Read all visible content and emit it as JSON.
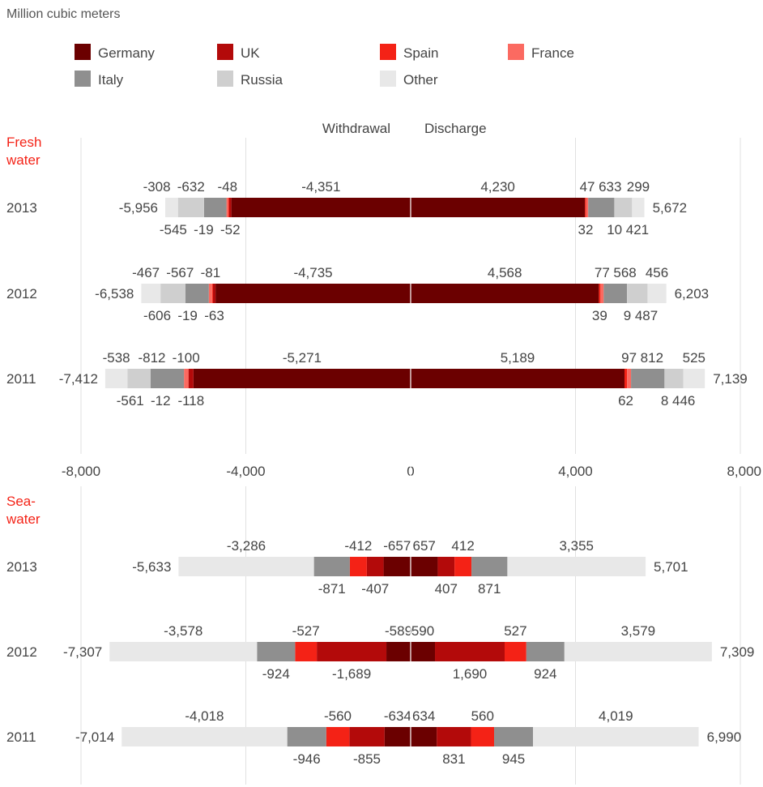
{
  "unit_label": "Million cubic meters",
  "legend": [
    {
      "name": "Germany",
      "color": "#6b0000"
    },
    {
      "name": "UK",
      "color": "#b30a0a"
    },
    {
      "name": "Spain",
      "color": "#f42216"
    },
    {
      "name": "France",
      "color": "#fb6a61"
    },
    {
      "name": "Italy",
      "color": "#8f8f8f"
    },
    {
      "name": "Russia",
      "color": "#cfcfcf"
    },
    {
      "name": "Other",
      "color": "#e8e8e8"
    }
  ],
  "chart_data": {
    "type": "bar",
    "orientation": "horizontal",
    "stacking": "diverging",
    "unit": "Million cubic meters",
    "direction_labels": {
      "left": "Withdrawal",
      "right": "Discharge"
    },
    "xlim": [
      -8000,
      8000
    ],
    "x_ticks": [
      -8000,
      -4000,
      0,
      4000,
      8000
    ],
    "x_tick_labels": [
      "-8,000",
      "-4,000",
      "0",
      "4,000",
      "8,000"
    ],
    "grid": true,
    "legend_position": "top",
    "series_order": [
      "Germany",
      "UK",
      "Spain",
      "France",
      "Italy",
      "Russia",
      "Other"
    ],
    "panels": [
      {
        "label": "Fresh water",
        "label_lines": [
          "Fresh",
          "water"
        ],
        "rows": [
          {
            "year": "2013",
            "withdrawal_total": -5956,
            "withdrawal_total_label": "-5,956",
            "discharge_total": 5672,
            "discharge_total_label": "5,672",
            "withdrawal": [
              {
                "series": "Germany",
                "value": -4351,
                "label": "-4,351",
                "pos": "above"
              },
              {
                "series": "UK",
                "value": -52,
                "label": "-52",
                "pos": "below"
              },
              {
                "series": "Spain",
                "value": -19,
                "label": "-19",
                "pos": "below"
              },
              {
                "series": "France",
                "value": -48,
                "label": "-48",
                "pos": "above"
              },
              {
                "series": "Italy",
                "value": -545,
                "label": "-545",
                "pos": "below"
              },
              {
                "series": "Russia",
                "value": -632,
                "label": "-632",
                "pos": "above"
              },
              {
                "series": "Other",
                "value": -308,
                "label": "-308",
                "pos": "above"
              }
            ],
            "discharge": [
              {
                "series": "Germany",
                "value": 4230,
                "label": "4,230",
                "pos": "above"
              },
              {
                "series": "Spain",
                "value": 32,
                "label": "32",
                "pos": "below"
              },
              {
                "series": "France",
                "value": 47,
                "label": "47",
                "pos": "above"
              },
              {
                "series": "Italy",
                "value": 633,
                "label": "633",
                "pos": "above"
              },
              {
                "series": "Russia",
                "value": 10,
                "label": "10",
                "pos": "below"
              },
              {
                "series": "Russia",
                "value": 421,
                "label": "421",
                "pos": "below"
              },
              {
                "series": "Other",
                "value": 299,
                "label": "299",
                "pos": "above"
              }
            ]
          },
          {
            "year": "2012",
            "withdrawal_total": -6538,
            "withdrawal_total_label": "-6,538",
            "discharge_total": 6203,
            "discharge_total_label": "6,203",
            "withdrawal": [
              {
                "series": "Germany",
                "value": -4735,
                "label": "-4,735",
                "pos": "above"
              },
              {
                "series": "UK",
                "value": -63,
                "label": "-63",
                "pos": "below"
              },
              {
                "series": "Spain",
                "value": -19,
                "label": "-19",
                "pos": "below"
              },
              {
                "series": "France",
                "value": -81,
                "label": "-81",
                "pos": "above"
              },
              {
                "series": "Italy",
                "value": -567,
                "label": "-567",
                "pos": "above"
              },
              {
                "series": "Russia",
                "value": -606,
                "label": "-606",
                "pos": "below"
              },
              {
                "series": "Other",
                "value": -467,
                "label": "-467",
                "pos": "above"
              }
            ],
            "discharge": [
              {
                "series": "Germany",
                "value": 4568,
                "label": "4,568",
                "pos": "above"
              },
              {
                "series": "Spain",
                "value": 39,
                "label": "39",
                "pos": "below"
              },
              {
                "series": "France",
                "value": 77,
                "label": "77",
                "pos": "above"
              },
              {
                "series": "Italy",
                "value": 568,
                "label": "568",
                "pos": "above"
              },
              {
                "series": "Russia",
                "value": 9,
                "label": "9",
                "pos": "below"
              },
              {
                "series": "Russia",
                "value": 487,
                "label": "487",
                "pos": "below"
              },
              {
                "series": "Other",
                "value": 456,
                "label": "456",
                "pos": "above"
              }
            ]
          },
          {
            "year": "2011",
            "withdrawal_total": -7412,
            "withdrawal_total_label": "-7,412",
            "discharge_total": 7139,
            "discharge_total_label": "7,139",
            "withdrawal": [
              {
                "series": "Germany",
                "value": -5271,
                "label": "-5,271",
                "pos": "above"
              },
              {
                "series": "UK",
                "value": -118,
                "label": "-118",
                "pos": "below"
              },
              {
                "series": "Spain",
                "value": -12,
                "label": "-12",
                "pos": "below"
              },
              {
                "series": "France",
                "value": -100,
                "label": "-100",
                "pos": "above"
              },
              {
                "series": "Italy",
                "value": -812,
                "label": "-812",
                "pos": "above"
              },
              {
                "series": "Russia",
                "value": -561,
                "label": "-561",
                "pos": "below"
              },
              {
                "series": "Other",
                "value": -538,
                "label": "-538",
                "pos": "above"
              }
            ],
            "discharge": [
              {
                "series": "Germany",
                "value": 5189,
                "label": "5,189",
                "pos": "above"
              },
              {
                "series": "Spain",
                "value": 62,
                "label": "62",
                "pos": "below"
              },
              {
                "series": "France",
                "value": 97,
                "label": "97",
                "pos": "above"
              },
              {
                "series": "Italy",
                "value": 812,
                "label": "812",
                "pos": "above"
              },
              {
                "series": "Russia",
                "value": 8,
                "label": "8",
                "pos": "below"
              },
              {
                "series": "Russia",
                "value": 446,
                "label": "446",
                "pos": "below"
              },
              {
                "series": "Other",
                "value": 525,
                "label": "525",
                "pos": "above"
              }
            ]
          }
        ]
      },
      {
        "label": "Sea-water",
        "label_lines": [
          "Sea-",
          "water"
        ],
        "rows": [
          {
            "year": "2013",
            "withdrawal_total": -5633,
            "withdrawal_total_label": "-5,633",
            "discharge_total": 5701,
            "discharge_total_label": "5,701",
            "withdrawal": [
              {
                "series": "Germany",
                "value": -657,
                "label": "-657",
                "pos": "above"
              },
              {
                "series": "UK",
                "value": -407,
                "label": "-407",
                "pos": "below"
              },
              {
                "series": "Spain",
                "value": -412,
                "label": "-412",
                "pos": "above"
              },
              {
                "series": "Italy",
                "value": -871,
                "label": "-871",
                "pos": "below"
              },
              {
                "series": "Other",
                "value": -3286,
                "label": "-3,286",
                "pos": "above"
              }
            ],
            "discharge": [
              {
                "series": "Germany",
                "value": 657,
                "label": "657",
                "pos": "above"
              },
              {
                "series": "UK",
                "value": 407,
                "label": "407",
                "pos": "below"
              },
              {
                "series": "Spain",
                "value": 412,
                "label": "412",
                "pos": "above"
              },
              {
                "series": "Italy",
                "value": 871,
                "label": "871",
                "pos": "below"
              },
              {
                "series": "Other",
                "value": 3355,
                "label": "3,355",
                "pos": "above"
              }
            ]
          },
          {
            "year": "2012",
            "withdrawal_total": -7307,
            "withdrawal_total_label": "-7,307",
            "discharge_total": 7309,
            "discharge_total_label": "7,309",
            "withdrawal": [
              {
                "series": "Germany",
                "value": -589,
                "label": "-589",
                "pos": "above"
              },
              {
                "series": "UK",
                "value": -1689,
                "label": "-1,689",
                "pos": "below"
              },
              {
                "series": "Spain",
                "value": -527,
                "label": "-527",
                "pos": "above"
              },
              {
                "series": "Italy",
                "value": -924,
                "label": "-924",
                "pos": "below"
              },
              {
                "series": "Other",
                "value": -3578,
                "label": "-3,578",
                "pos": "above"
              }
            ],
            "discharge": [
              {
                "series": "Germany",
                "value": 590,
                "label": "590",
                "pos": "above"
              },
              {
                "series": "UK",
                "value": 1690,
                "label": "1,690",
                "pos": "below"
              },
              {
                "series": "Spain",
                "value": 527,
                "label": "527",
                "pos": "above"
              },
              {
                "series": "Italy",
                "value": 924,
                "label": "924",
                "pos": "below"
              },
              {
                "series": "Other",
                "value": 3579,
                "label": "3,579",
                "pos": "above"
              }
            ]
          },
          {
            "year": "2011",
            "withdrawal_total": -7014,
            "withdrawal_total_label": "-7,014",
            "discharge_total": 6990,
            "discharge_total_label": "6,990",
            "withdrawal": [
              {
                "series": "Germany",
                "value": -634,
                "label": "-634",
                "pos": "above"
              },
              {
                "series": "UK",
                "value": -855,
                "label": "-855",
                "pos": "below"
              },
              {
                "series": "Spain",
                "value": -560,
                "label": "-560",
                "pos": "above"
              },
              {
                "series": "Italy",
                "value": -946,
                "label": "-946",
                "pos": "below"
              },
              {
                "series": "Other",
                "value": -4018,
                "label": "-4,018",
                "pos": "above"
              }
            ],
            "discharge": [
              {
                "series": "Germany",
                "value": 634,
                "label": "634",
                "pos": "above"
              },
              {
                "series": "UK",
                "value": 831,
                "label": "831",
                "pos": "below"
              },
              {
                "series": "Spain",
                "value": 560,
                "label": "560",
                "pos": "above"
              },
              {
                "series": "Italy",
                "value": 945,
                "label": "945",
                "pos": "below"
              },
              {
                "series": "Other",
                "value": 4019,
                "label": "4,019",
                "pos": "above"
              }
            ]
          }
        ]
      }
    ]
  }
}
